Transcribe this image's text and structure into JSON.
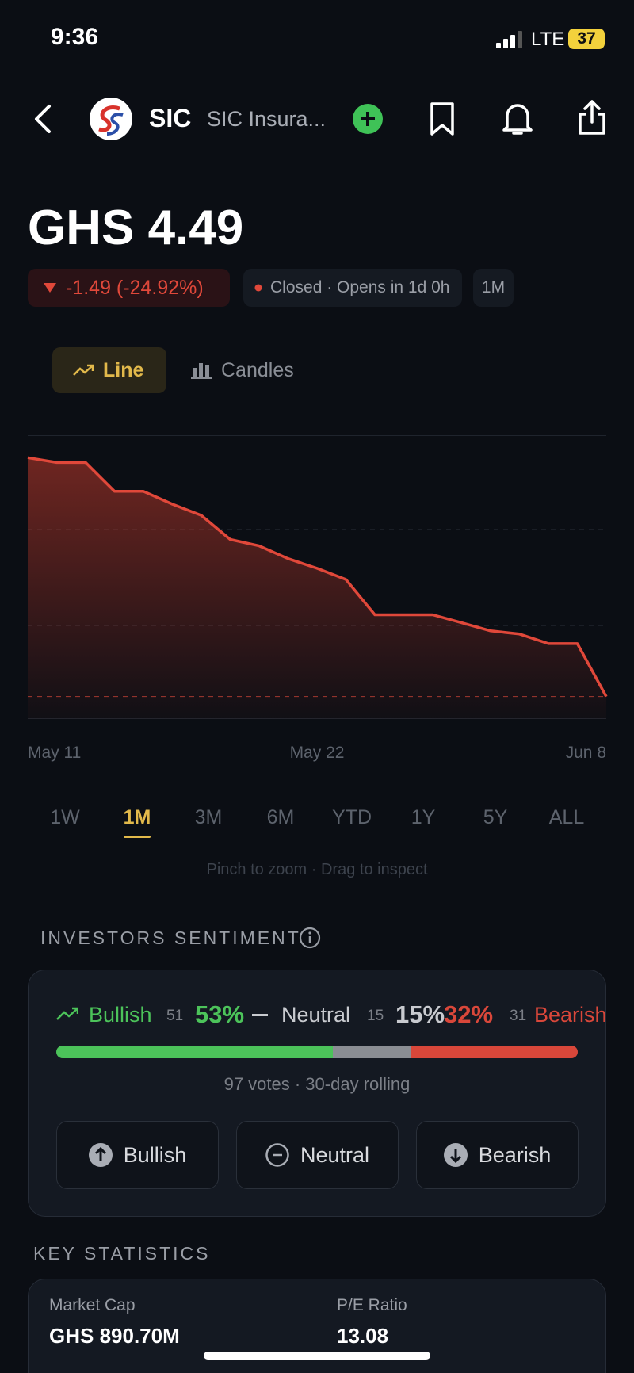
{
  "status_bar": {
    "time": "9:36",
    "network": "LTE",
    "battery": "37"
  },
  "header": {
    "ticker": "SIC",
    "name": "SIC Insura..."
  },
  "quote": {
    "price": "GHS 4.49",
    "change": "-1.49 (-24.92%)",
    "market_status": "Closed · Opens in 1d 0h",
    "period": "1M"
  },
  "chart_toggle": [
    "Line",
    "Candles"
  ],
  "chart_data": {
    "type": "line",
    "categories": [
      "May 11",
      null,
      null,
      null,
      null,
      null,
      null,
      null,
      null,
      null,
      "May 22",
      null,
      null,
      null,
      null,
      null,
      null,
      null,
      null,
      null,
      "Jun 8"
    ],
    "values": [
      5.98,
      5.95,
      5.95,
      5.77,
      5.77,
      5.69,
      5.62,
      5.47,
      5.43,
      5.35,
      5.29,
      5.22,
      5.0,
      5.0,
      5.0,
      4.95,
      4.9,
      4.88,
      4.82,
      4.82,
      4.49
    ],
    "color": "#e0483a",
    "ylim": [
      4.35,
      6.12
    ]
  },
  "ranges": [
    "1W",
    "1M",
    "3M",
    "6M",
    "YTD",
    "1Y",
    "5Y",
    "ALL"
  ],
  "active_range": 1,
  "chart_hint": "Pinch to zoom · Drag to inspect",
  "sentiment": {
    "title": "INVESTORS SENTIMENT",
    "options": [
      {
        "name": "Bullish",
        "votes": 51,
        "percent": 53,
        "percent_label": "53%",
        "color": "#4cc35a"
      },
      {
        "name": "Neutral",
        "votes": 15,
        "percent": 15,
        "percent_label": "15%",
        "color": "#8a8d93"
      },
      {
        "name": "Bearish",
        "votes": 31,
        "percent": 32,
        "percent_label": "32%",
        "color": "#d9473a"
      }
    ],
    "footer": "97 votes · 30-day rolling",
    "buttons": [
      "Bullish",
      "Neutral",
      "Bearish"
    ]
  },
  "key_statistics": {
    "title": "KEY STATISTICS",
    "items": [
      {
        "label": "Market Cap",
        "value": "GHS 890.70M"
      },
      {
        "label": "P/E Ratio",
        "value": "13.08"
      }
    ]
  }
}
